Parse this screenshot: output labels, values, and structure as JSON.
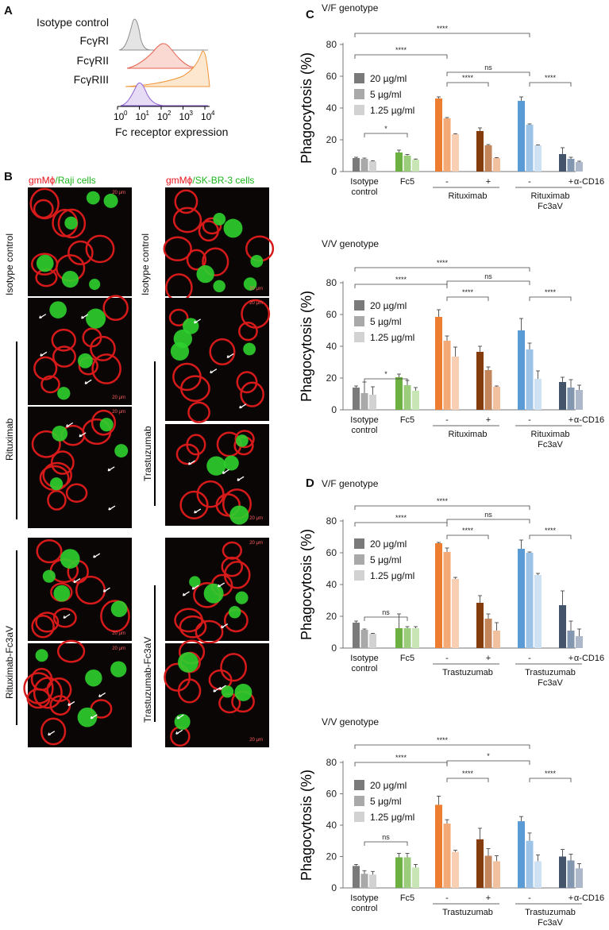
{
  "panelA": {
    "letter": "A",
    "labels": [
      "Isotype control",
      "FcγRI",
      "FcγRII",
      "FcγRIII"
    ],
    "xtick_base": "10",
    "xtick_exps": [
      "0",
      "1",
      "2",
      "3",
      "4"
    ],
    "xlabel": "Fc receptor expression"
  },
  "panelB": {
    "letter": "B",
    "left_header_a": "gmMϕ",
    "left_header_b": "/Raji cells",
    "right_header_a": "gmMϕ",
    "right_header_b": "/SK-BR-3 cells",
    "left_labels": [
      "Isotype control",
      "Rituximab",
      "Rituximab-Fc3aV"
    ],
    "right_labels": [
      "Isotype control",
      "Trastuzumab",
      "Trastuzumab-Fc3aV"
    ],
    "scale": "20 μm"
  },
  "panelC": {
    "letter": "C"
  },
  "panelD": {
    "letter": "D"
  },
  "colors": {
    "gray": [
      "#7a7a7a",
      "#a9a9a9",
      "#d2d2d2"
    ],
    "green": [
      "#6cb041",
      "#9ccd7d",
      "#c8e5b5"
    ],
    "orange": [
      "#ed7d31",
      "#f3aa77",
      "#f8cfb2"
    ],
    "brown": [
      "#843c0c",
      "#c4855a",
      "#f0c09f"
    ],
    "blue": [
      "#5b9bd5",
      "#9dc3e6",
      "#cfe2f3"
    ],
    "navy": [
      "#44546a",
      "#8497b0",
      "#adb9ca"
    ]
  },
  "chart_data": [
    {
      "type": "bar",
      "id": "C1",
      "title": "V/F genotype",
      "ylabel": "Phagocytosis (%)",
      "ylim": [
        0,
        80
      ],
      "yticks": [
        "0",
        "20",
        "40",
        "60",
        "80"
      ],
      "legend": [
        "20 µg/ml",
        "5 µg/ml",
        "1.25 µg/ml"
      ],
      "series_names": [
        "20 µg/ml",
        "5 µg/ml",
        "1.25 µg/ml"
      ],
      "groups": [
        "Isotype control",
        "Fc5",
        "Rituximab -",
        "Rituximab +",
        "Rituximab Fc3aV -",
        "Rituximab Fc3aV +"
      ],
      "values": [
        [
          8.5,
          8,
          6.5
        ],
        [
          12,
          10,
          7.5
        ],
        [
          46,
          33.5,
          23.5
        ],
        [
          25.5,
          16.5,
          8.5
        ],
        [
          44.5,
          29.5,
          16.5
        ],
        [
          11,
          8,
          6
        ]
      ],
      "errors": [
        [
          0.5,
          0.5,
          0.3
        ],
        [
          1.5,
          0.7,
          0.4
        ],
        [
          1,
          0.5,
          0.3
        ],
        [
          2,
          0.5,
          0.3
        ],
        [
          2.5,
          0.5,
          0.3
        ],
        [
          4,
          1,
          0.5
        ]
      ],
      "xlabels": {
        "isotype": "Isotype\ncontrol",
        "fc5": "Fc5",
        "mab": "Rituximab",
        "fc3": "Rituximab\nFc3aV",
        "minus": "-",
        "plus": "+",
        "acd16": "α-CD16"
      },
      "sig": [
        "*",
        "****",
        "****",
        "****",
        "ns",
        "****"
      ]
    },
    {
      "type": "bar",
      "id": "C2",
      "title": "V/V genotype",
      "ylabel": "Phagocytosis (%)",
      "ylim": [
        0,
        80
      ],
      "yticks": [
        "0",
        "20",
        "40",
        "60",
        "80"
      ],
      "legend": [
        "20 µg/ml",
        "5 µg/ml",
        "1.25 µg/ml"
      ],
      "series_names": [
        "20 µg/ml",
        "5 µg/ml",
        "1.25 µg/ml"
      ],
      "groups": [
        "Isotype control",
        "Fc5",
        "Rituximab -",
        "Rituximab +",
        "Rituximab Fc3aV -",
        "Rituximab Fc3aV +"
      ],
      "values": [
        [
          14,
          10.5,
          9.5
        ],
        [
          20.5,
          15.5,
          12
        ],
        [
          58.5,
          43.5,
          33.5
        ],
        [
          36.5,
          25,
          14.5
        ],
        [
          50,
          38,
          19.5
        ],
        [
          17.5,
          14,
          12.5
        ]
      ],
      "errors": [
        [
          1,
          7,
          5
        ],
        [
          2,
          3,
          2
        ],
        [
          4.5,
          3,
          6
        ],
        [
          3.5,
          2,
          0.5
        ],
        [
          7.5,
          4,
          5
        ],
        [
          3,
          5,
          3
        ]
      ],
      "xlabels": {
        "isotype": "Isotype\ncontrol",
        "fc5": "Fc5",
        "mab": "Rituximab",
        "fc3": "Rituximab\nFc3aV",
        "minus": "-",
        "plus": "+",
        "acd16": "α-CD16"
      },
      "sig": [
        "*",
        "****",
        "****",
        "****",
        "ns",
        "****"
      ]
    },
    {
      "type": "bar",
      "id": "D1",
      "title": "V/F genotype",
      "ylabel": "Phagocytosis (%)",
      "ylim": [
        0,
        80
      ],
      "yticks": [
        "0",
        "20",
        "40",
        "60",
        "80"
      ],
      "legend": [
        "20 μg/ml",
        "5 μg/ml",
        "1.25 μg/ml"
      ],
      "series_names": [
        "20 μg/ml",
        "5 μg/ml",
        "1.25 μg/ml"
      ],
      "groups": [
        "Isotype control",
        "Fc5",
        "Trastuzumab -",
        "Trastuzumab +",
        "Trastuzumab Fc3aV -",
        "Trastuzumab Fc3aV +"
      ],
      "values": [
        [
          16,
          11.5,
          9
        ],
        [
          12.5,
          12.5,
          12.5
        ],
        [
          66,
          60.5,
          43.5
        ],
        [
          28.5,
          18.5,
          11
        ],
        [
          62.5,
          60,
          46
        ],
        [
          27,
          11,
          7.5
        ]
      ],
      "errors": [
        [
          1,
          0.5,
          0.3
        ],
        [
          9,
          1,
          1
        ],
        [
          0.5,
          2.5,
          1
        ],
        [
          4.5,
          3,
          5
        ],
        [
          5.5,
          0.5,
          1
        ],
        [
          9,
          6,
          4.5
        ]
      ],
      "xlabels": {
        "isotype": "Isotype\ncontrol",
        "fc5": "Fc5",
        "mab": "Trastuzumab",
        "fc3": "Trastuzumab\nFc3aV",
        "minus": "-",
        "plus": "+",
        "acd16": "α-CD16"
      },
      "sig": [
        "ns",
        "****",
        "****",
        "****",
        "ns",
        "****"
      ]
    },
    {
      "type": "bar",
      "id": "D2",
      "title": "V/V genotype",
      "ylabel": "Phagocytosis (%)",
      "ylim": [
        0,
        80
      ],
      "yticks": [
        "0",
        "20",
        "40",
        "60",
        "80"
      ],
      "legend": [
        "20 μg/ml",
        "5 μg/ml",
        "1.25 μg/ml"
      ],
      "series_names": [
        "20 μg/ml",
        "5 μg/ml",
        "1.25 μg/ml"
      ],
      "groups": [
        "Isotype control",
        "Fc5",
        "Trastuzumab -",
        "Trastuzumab +",
        "Trastuzumab Fc3aV -",
        "Trastuzumab Fc3aV +"
      ],
      "values": [
        [
          14,
          9,
          8.5
        ],
        [
          19.5,
          19.5,
          13
        ],
        [
          53,
          41,
          23
        ],
        [
          31,
          20.5,
          17
        ],
        [
          42.5,
          30,
          17
        ],
        [
          20,
          17.5,
          12.5
        ]
      ],
      "errors": [
        [
          1,
          2,
          2
        ],
        [
          2.5,
          2.5,
          2
        ],
        [
          5.5,
          2.5,
          1
        ],
        [
          7,
          4.5,
          3.5
        ],
        [
          3,
          5,
          4
        ],
        [
          4.5,
          4,
          3
        ]
      ],
      "xlabels": {
        "isotype": "Isotype\ncontrol",
        "fc5": "Fc5",
        "mab": "Trastuzumab",
        "fc3": "Trastuzumab\nFc3aV",
        "minus": "-",
        "plus": "+",
        "acd16": "α-CD16"
      },
      "sig": [
        "ns",
        "****",
        "****",
        "****",
        "*",
        "****"
      ]
    }
  ]
}
